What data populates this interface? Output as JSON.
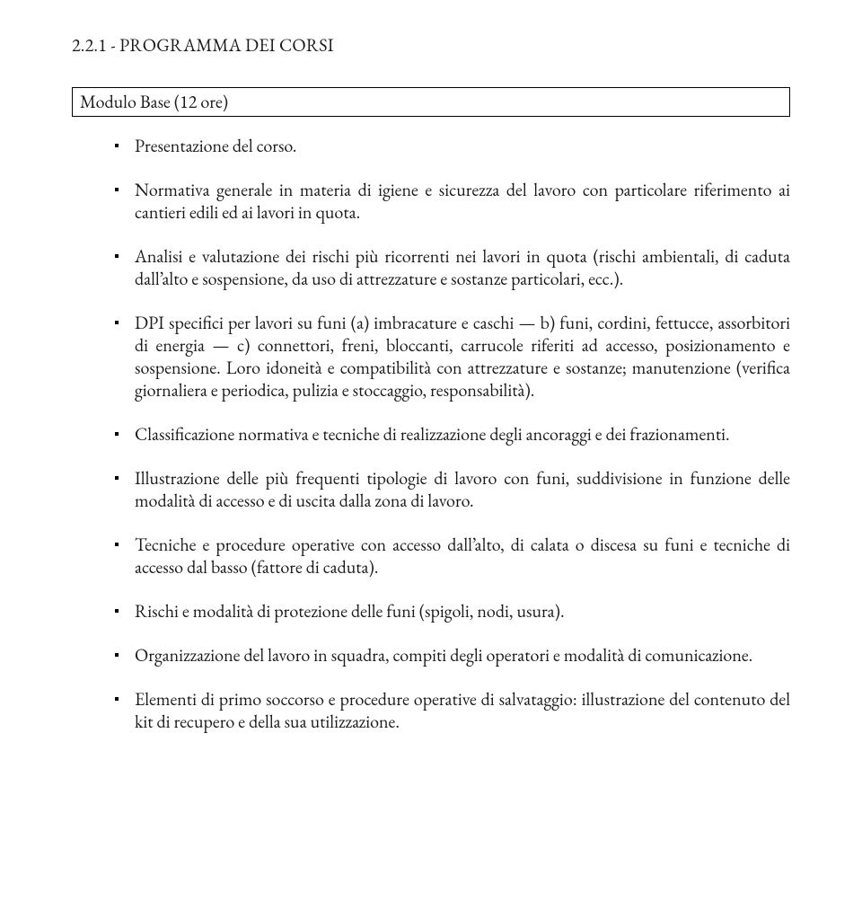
{
  "heading": "2.2.1 - PROGRAMMA DEI CORSI",
  "module_title": "Modulo Base (12 ore)",
  "items": [
    "Presentazione del corso.",
    "Normativa generale in materia di igiene e sicurezza del lavoro con particolare riferimento ai cantieri edili ed ai lavori in quota.",
    "Analisi e valutazione dei rischi più ricorrenti nei lavori in quota (rischi ambientali, di caduta dall’alto e sospensione, da uso di attrezzature e sostanze particolari, ecc.).",
    "DPI specifici per lavori su funi (a) imbracature e caschi — b) funi, cordini, fettucce,  assorbitori di energia — c) connettori, freni, bloccanti, carrucole riferiti ad accesso, posizionamento e sospensione. Loro idoneità e compatibilità con attrezzature e sostanze; manutenzione (verifica giornaliera e periodica, pulizia e stoccaggio, responsabilità).",
    "Classificazione normativa e tecniche di realizzazione degli ancoraggi e dei frazionamenti.",
    "Illustrazione delle più frequenti tipologie di lavoro con funi, suddivisione in funzione delle modalità di accesso e di uscita dalla zona di lavoro.",
    "Tecniche e procedure operative con accesso dall’alto, di calata o discesa su funi e tecniche di accesso dal basso (fattore di caduta).",
    "Rischi e modalità di protezione delle funi (spigoli, nodi, usura).",
    "Organizzazione del lavoro in squadra, compiti degli operatori e modalità di comunicazione.",
    "Elementi di primo soccorso e procedure operative di salvataggio: illustrazione del contenuto del kit di recupero e della sua utilizzazione."
  ]
}
